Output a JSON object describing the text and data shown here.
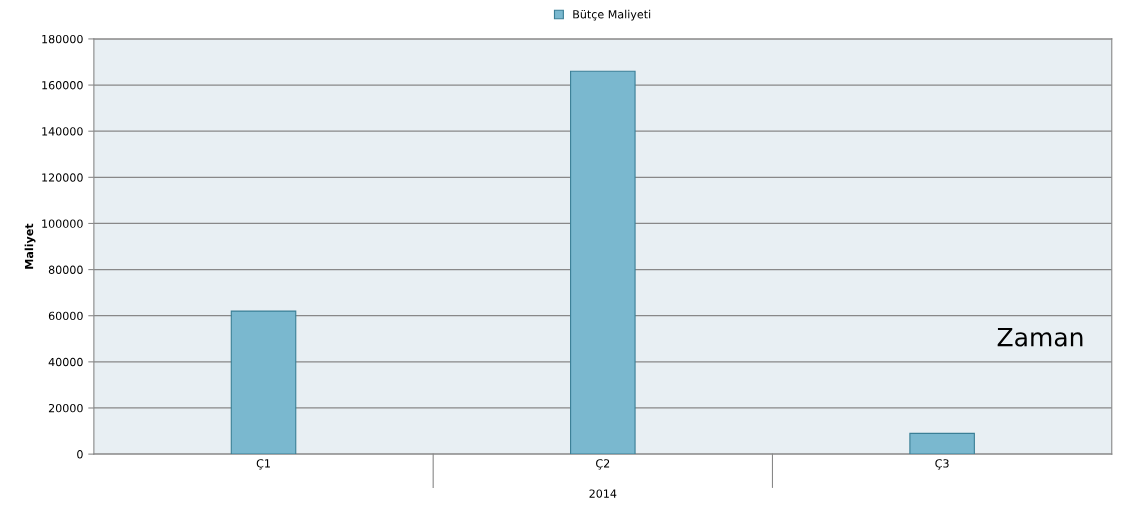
{
  "chart_data": {
    "type": "bar",
    "categories": [
      "Ç1",
      "Ç2",
      "Ç3"
    ],
    "series": [
      {
        "name": "Bütçe Maliyeti",
        "color": "#7ab8cf",
        "values": [
          62000,
          166000,
          9000
        ]
      }
    ],
    "ylabel": "Maliyet",
    "xlabel": "2014",
    "annotations": [
      "Zaman"
    ],
    "ylim": [
      0,
      180000
    ],
    "yticks": [
      0,
      20000,
      40000,
      60000,
      80000,
      100000,
      120000,
      140000,
      160000,
      180000
    ],
    "grid": "y",
    "legend": "top"
  }
}
